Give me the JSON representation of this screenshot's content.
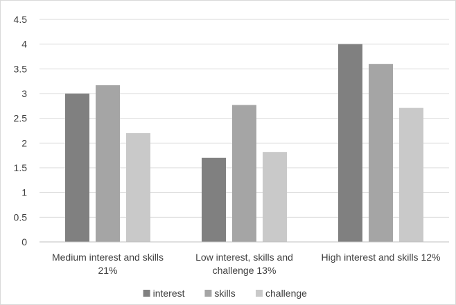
{
  "chart_data": {
    "type": "bar",
    "title": "",
    "xlabel": "",
    "ylabel": "",
    "categories": [
      [
        "Medium interest and skills",
        "21%"
      ],
      [
        "Low interest, skills and",
        "challenge 13%"
      ],
      [
        "High interest and skills 12%"
      ]
    ],
    "series": [
      {
        "name": "interest",
        "color": "#808080",
        "values": [
          3.0,
          1.7,
          4.0
        ]
      },
      {
        "name": "skills",
        "color": "#a5a5a5",
        "values": [
          3.17,
          2.77,
          3.6
        ]
      },
      {
        "name": "challenge",
        "color": "#c9c9c9",
        "values": [
          2.2,
          1.82,
          2.71
        ]
      }
    ],
    "ylim": [
      0,
      4.5
    ],
    "yticks": [
      "0",
      "0.5",
      "1",
      "1.5",
      "2",
      "2.5",
      "3",
      "3.5",
      "4",
      "4.5"
    ],
    "ytick_values": [
      0,
      0.5,
      1,
      1.5,
      2,
      2.5,
      3,
      3.5,
      4,
      4.5
    ],
    "grid": true,
    "legend_position": "bottom",
    "gridline_color": "#d9d9d9",
    "axis_color": "#bfbfbf"
  }
}
